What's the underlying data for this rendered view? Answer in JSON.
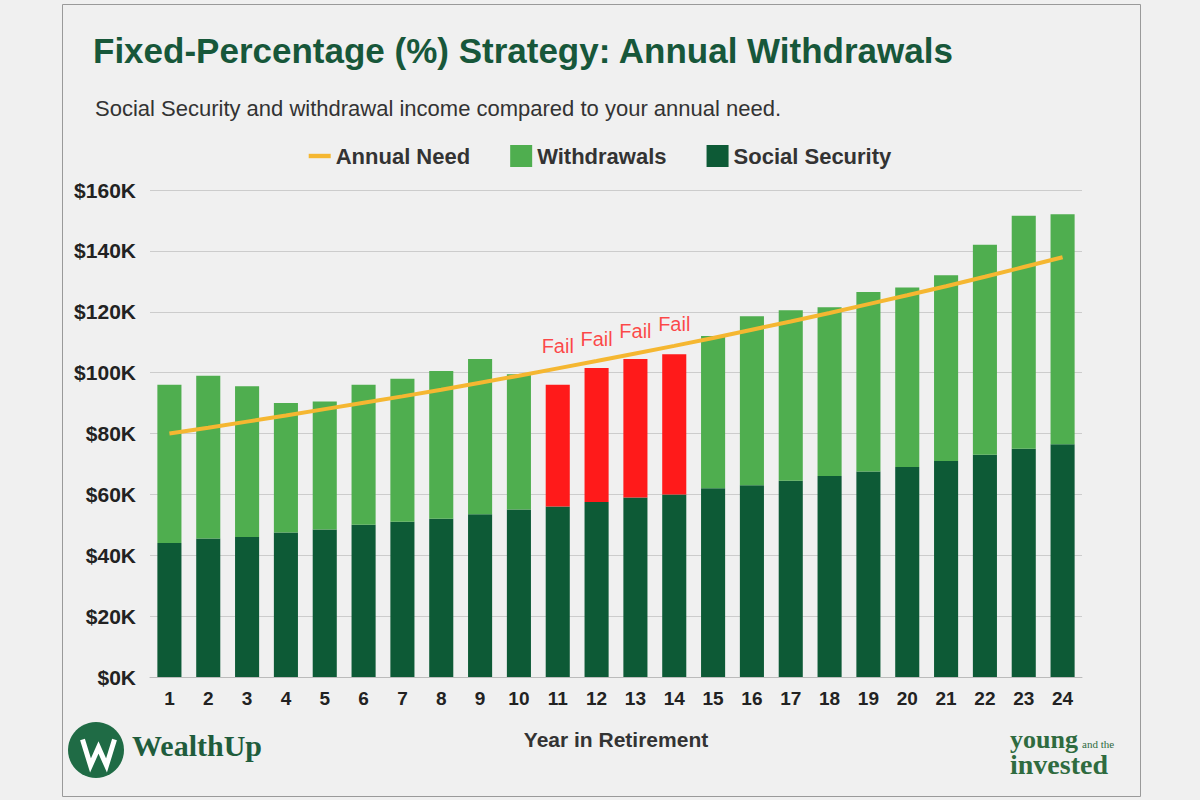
{
  "chart_data": {
    "type": "bar",
    "title": "Fixed-Percentage (%) Strategy: Annual Withdrawals",
    "subtitle": "Social Security and withdrawal income compared to your annual need.",
    "x_label": "Year in Retirement",
    "categories": [
      "1",
      "2",
      "3",
      "4",
      "5",
      "6",
      "7",
      "8",
      "9",
      "10",
      "11",
      "12",
      "13",
      "14",
      "15",
      "16",
      "17",
      "18",
      "19",
      "20",
      "21",
      "22",
      "23",
      "24"
    ],
    "series": [
      {
        "name": "Annual Need",
        "type": "line",
        "color": "#f5b731",
        "values": [
          80000,
          81900,
          83900,
          85900,
          88000,
          90100,
          92200,
          94400,
          96700,
          99000,
          101400,
          103800,
          106300,
          108800,
          111400,
          114100,
          116800,
          119600,
          122500,
          125400,
          128400,
          131500,
          134700,
          137900
        ]
      },
      {
        "name": "Withdrawals",
        "type": "bar",
        "color": "#4fae4f",
        "colors": [
          "#4fae4f",
          "#4fae4f",
          "#4fae4f",
          "#4fae4f",
          "#4fae4f",
          "#4fae4f",
          "#4fae4f",
          "#4fae4f",
          "#4fae4f",
          "#4fae4f",
          "#ff1a1a",
          "#ff1a1a",
          "#ff1a1a",
          "#ff1a1a",
          "#4fae4f",
          "#4fae4f",
          "#4fae4f",
          "#4fae4f",
          "#4fae4f",
          "#4fae4f",
          "#4fae4f",
          "#4fae4f",
          "#4fae4f",
          "#4fae4f"
        ],
        "values": [
          52000,
          53500,
          49500,
          42500,
          42000,
          46000,
          47000,
          48500,
          51000,
          44500,
          40000,
          44000,
          45500,
          46000,
          50000,
          55500,
          56000,
          55500,
          59000,
          59000,
          61000,
          69000,
          76500,
          75500
        ]
      },
      {
        "name": "Social Security",
        "type": "bar",
        "color": "#0d5a36",
        "values": [
          44000,
          45500,
          46000,
          47500,
          48500,
          50000,
          51000,
          52000,
          53500,
          55000,
          56000,
          57500,
          59000,
          60000,
          62000,
          63000,
          64500,
          66000,
          67500,
          69000,
          71000,
          73000,
          75000,
          76500
        ]
      }
    ],
    "stacked": true,
    "ylim": [
      0,
      160000
    ],
    "yticks": [
      {
        "value": 0,
        "label": "$0K"
      },
      {
        "value": 20000,
        "label": "$20K"
      },
      {
        "value": 40000,
        "label": "$40K"
      },
      {
        "value": 60000,
        "label": "$60K"
      },
      {
        "value": 80000,
        "label": "$80K"
      },
      {
        "value": 100000,
        "label": "$100K"
      },
      {
        "value": 120000,
        "label": "$120K"
      },
      {
        "value": 140000,
        "label": "$140K"
      },
      {
        "value": 160000,
        "label": "$160K"
      }
    ],
    "grid": true,
    "legend": "top",
    "annotations": [
      {
        "category": "11",
        "text": "Fail"
      },
      {
        "category": "12",
        "text": "Fail"
      },
      {
        "category": "13",
        "text": "Fail"
      },
      {
        "category": "14",
        "text": "Fail"
      }
    ],
    "brand_left": "WealthUp",
    "brand_right": [
      "young",
      "and the",
      "invested"
    ]
  }
}
